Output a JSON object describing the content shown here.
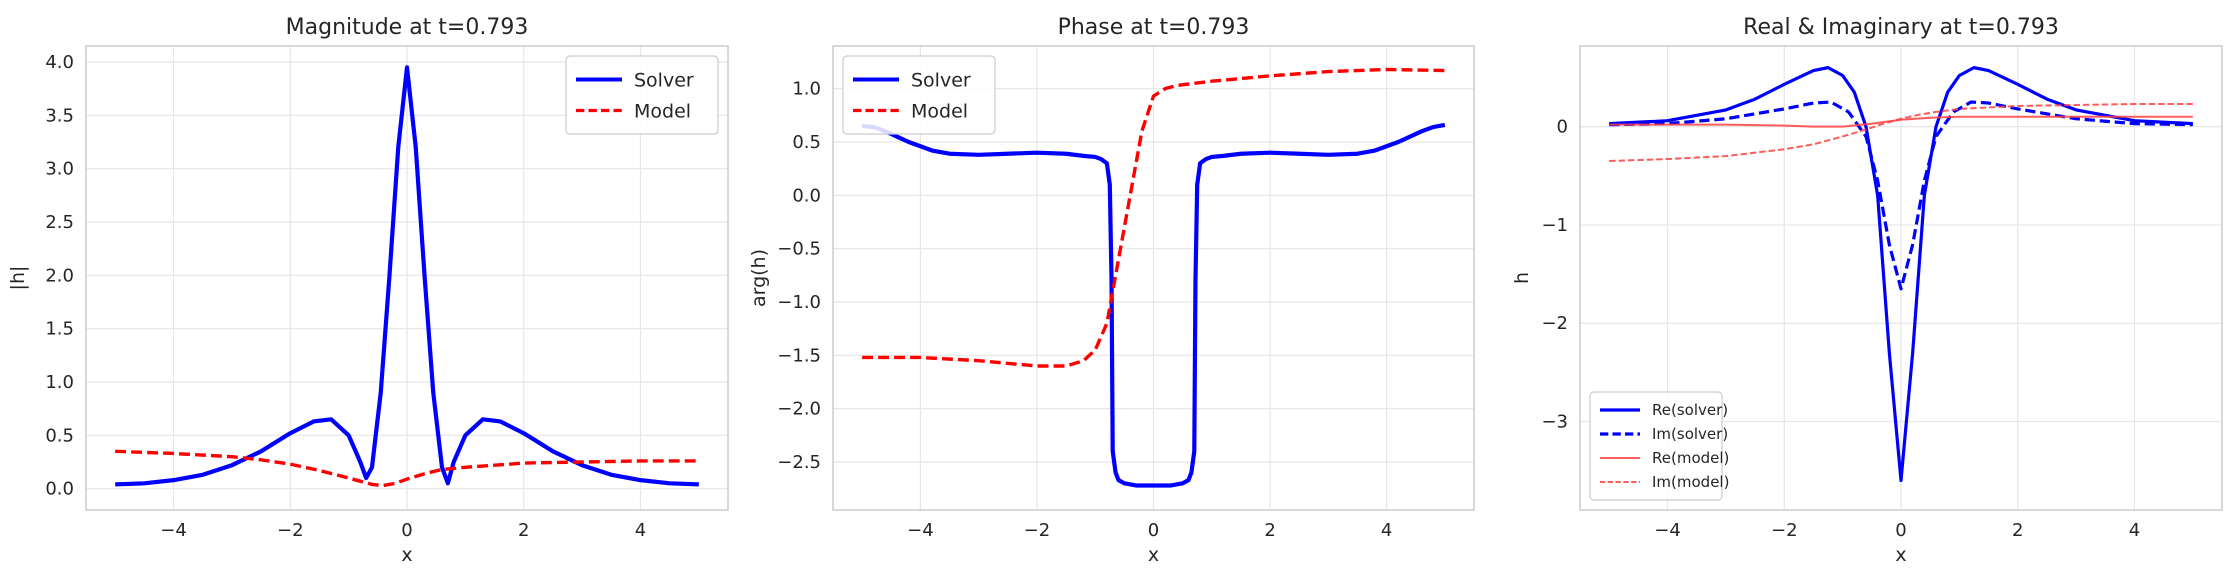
{
  "chart_data": [
    {
      "type": "line",
      "title": "Magnitude at t=0.793",
      "xlabel": "x",
      "ylabel": "|h|",
      "xlim": [
        -5.5,
        5.5
      ],
      "ylim": [
        -0.2,
        4.15
      ],
      "xticks": [
        -4,
        -2,
        0,
        2,
        4
      ],
      "xtick_labels": [
        "−4",
        "−2",
        "0",
        "2",
        "4"
      ],
      "yticks": [
        0.0,
        0.5,
        1.0,
        1.5,
        2.0,
        2.5,
        3.0,
        3.5,
        4.0
      ],
      "ytick_labels": [
        "0.0",
        "0.5",
        "1.0",
        "1.5",
        "2.0",
        "2.5",
        "3.0",
        "3.5",
        "4.0"
      ],
      "grid": true,
      "legend": "top-right",
      "series": [
        {
          "name": "Solver",
          "color": "#0000ff",
          "style": "solid",
          "x": [
            -5,
            -4.5,
            -4,
            -3.5,
            -3,
            -2.5,
            -2,
            -1.6,
            -1.3,
            -1.0,
            -0.8,
            -0.7,
            -0.6,
            -0.45,
            -0.3,
            -0.15,
            0,
            0.15,
            0.3,
            0.45,
            0.6,
            0.7,
            0.8,
            1.0,
            1.3,
            1.6,
            2,
            2.5,
            3,
            3.5,
            4,
            4.5,
            5
          ],
          "y": [
            0.04,
            0.05,
            0.08,
            0.13,
            0.22,
            0.35,
            0.52,
            0.63,
            0.65,
            0.5,
            0.25,
            0.1,
            0.2,
            0.9,
            2.0,
            3.2,
            3.95,
            3.2,
            2.0,
            0.9,
            0.2,
            0.05,
            0.25,
            0.5,
            0.65,
            0.63,
            0.52,
            0.35,
            0.22,
            0.13,
            0.08,
            0.05,
            0.04
          ]
        },
        {
          "name": "Model",
          "color": "#ff0000",
          "style": "dashed",
          "x": [
            -5,
            -4,
            -3,
            -2.5,
            -2,
            -1.5,
            -1,
            -0.6,
            -0.4,
            -0.2,
            0,
            0.3,
            0.6,
            1,
            1.5,
            2,
            3,
            4,
            5
          ],
          "y": [
            0.35,
            0.33,
            0.3,
            0.27,
            0.23,
            0.17,
            0.1,
            0.04,
            0.03,
            0.05,
            0.09,
            0.14,
            0.18,
            0.2,
            0.22,
            0.24,
            0.25,
            0.26,
            0.26
          ]
        }
      ]
    },
    {
      "type": "line",
      "title": "Phase at t=0.793",
      "xlabel": "x",
      "ylabel": "arg(h)",
      "xlim": [
        -5.5,
        5.5
      ],
      "ylim": [
        -2.95,
        1.4
      ],
      "xticks": [
        -4,
        -2,
        0,
        2,
        4
      ],
      "xtick_labels": [
        "−4",
        "−2",
        "0",
        "2",
        "4"
      ],
      "yticks": [
        -2.5,
        -2.0,
        -1.5,
        -1.0,
        -0.5,
        0.0,
        0.5,
        1.0
      ],
      "ytick_labels": [
        "−2.5",
        "−2.0",
        "−1.5",
        "−1.0",
        "−0.5",
        "0.0",
        "0.5",
        "1.0"
      ],
      "grid": true,
      "legend": "top-left",
      "series": [
        {
          "name": "Solver",
          "color": "#0000ff",
          "style": "solid",
          "x": [
            -5,
            -4.8,
            -4.6,
            -4.4,
            -4.2,
            -4,
            -3.8,
            -3.5,
            -3,
            -2.5,
            -2,
            -1.5,
            -1.2,
            -1.0,
            -0.9,
            -0.8,
            -0.75,
            -0.72,
            -0.7,
            -0.65,
            -0.6,
            -0.5,
            -0.3,
            0,
            0.3,
            0.5,
            0.6,
            0.65,
            0.7,
            0.72,
            0.75,
            0.8,
            0.9,
            1.0,
            1.2,
            1.5,
            2,
            2.5,
            3,
            3.5,
            3.8,
            4,
            4.2,
            4.4,
            4.6,
            4.8,
            5
          ],
          "y": [
            0.65,
            0.64,
            0.6,
            0.55,
            0.5,
            0.46,
            0.42,
            0.39,
            0.38,
            0.39,
            0.4,
            0.39,
            0.37,
            0.36,
            0.34,
            0.3,
            0.1,
            -0.8,
            -2.4,
            -2.6,
            -2.67,
            -2.7,
            -2.72,
            -2.72,
            -2.72,
            -2.7,
            -2.67,
            -2.6,
            -2.4,
            -0.8,
            0.1,
            0.3,
            0.34,
            0.36,
            0.37,
            0.39,
            0.4,
            0.39,
            0.38,
            0.39,
            0.42,
            0.46,
            0.5,
            0.55,
            0.6,
            0.64,
            0.66
          ]
        },
        {
          "name": "Model",
          "color": "#ff0000",
          "style": "dashed",
          "x": [
            -5,
            -4,
            -3,
            -2,
            -1.5,
            -1.2,
            -1.0,
            -0.8,
            -0.6,
            -0.4,
            -0.2,
            0,
            0.2,
            0.4,
            0.7,
            1,
            2,
            3,
            4,
            5
          ],
          "y": [
            -1.52,
            -1.52,
            -1.55,
            -1.6,
            -1.6,
            -1.55,
            -1.45,
            -1.2,
            -0.6,
            0.0,
            0.6,
            0.93,
            1.0,
            1.03,
            1.05,
            1.07,
            1.12,
            1.16,
            1.18,
            1.17
          ]
        }
      ]
    },
    {
      "type": "line",
      "title": "Real & Imaginary at t=0.793",
      "xlabel": "x",
      "ylabel": "h",
      "xlim": [
        -5.5,
        5.5
      ],
      "ylim": [
        -3.9,
        0.82
      ],
      "xticks": [
        -4,
        -2,
        0,
        2,
        4
      ],
      "xtick_labels": [
        "−4",
        "−2",
        "0",
        "2",
        "4"
      ],
      "yticks": [
        -3,
        -2,
        -1,
        0
      ],
      "ytick_labels": [
        "−3",
        "−2",
        "−1",
        "0"
      ],
      "grid": true,
      "legend": "bottom-left",
      "series": [
        {
          "name": "Re(solver)",
          "color": "#0000ff",
          "style": "solid",
          "x": [
            -5,
            -4,
            -3,
            -2.5,
            -2,
            -1.5,
            -1.25,
            -1.0,
            -0.8,
            -0.6,
            -0.4,
            -0.2,
            0,
            0.2,
            0.4,
            0.6,
            0.8,
            1.0,
            1.25,
            1.5,
            2,
            2.5,
            3,
            4,
            5
          ],
          "y": [
            0.03,
            0.06,
            0.17,
            0.28,
            0.43,
            0.57,
            0.6,
            0.52,
            0.35,
            0.0,
            -0.7,
            -2.3,
            -3.6,
            -2.3,
            -0.7,
            0.0,
            0.35,
            0.52,
            0.6,
            0.57,
            0.43,
            0.28,
            0.17,
            0.06,
            0.03
          ]
        },
        {
          "name": "Im(solver)",
          "color": "#0000ff",
          "style": "dashed",
          "x": [
            -5,
            -4,
            -3,
            -2,
            -1.5,
            -1.2,
            -0.9,
            -0.6,
            -0.4,
            -0.2,
            0,
            0.2,
            0.4,
            0.6,
            0.9,
            1.2,
            1.5,
            2,
            3,
            4,
            5
          ],
          "y": [
            0.02,
            0.03,
            0.08,
            0.18,
            0.24,
            0.25,
            0.15,
            -0.1,
            -0.55,
            -1.2,
            -1.65,
            -1.2,
            -0.55,
            -0.1,
            0.15,
            0.25,
            0.24,
            0.18,
            0.08,
            0.03,
            0.02
          ]
        },
        {
          "name": "Re(model)",
          "color": "#ff4040",
          "style": "solid",
          "x": [
            -5,
            -4,
            -3,
            -2,
            -1.5,
            -1,
            -0.5,
            0,
            0.5,
            1,
            1.5,
            2,
            3,
            4,
            5
          ],
          "y": [
            0.02,
            0.02,
            0.02,
            0.01,
            0.0,
            0.0,
            0.03,
            0.07,
            0.09,
            0.1,
            0.1,
            0.1,
            0.1,
            0.1,
            0.1
          ]
        },
        {
          "name": "Im(model)",
          "color": "#ff4040",
          "style": "dashed",
          "x": [
            -5,
            -4,
            -3,
            -2,
            -1.5,
            -1,
            -0.6,
            -0.3,
            0,
            0.3,
            0.6,
            1,
            2,
            3,
            4,
            5
          ],
          "y": [
            -0.35,
            -0.33,
            -0.3,
            -0.23,
            -0.18,
            -0.1,
            -0.03,
            0.03,
            0.08,
            0.12,
            0.15,
            0.18,
            0.21,
            0.22,
            0.23,
            0.23
          ]
        }
      ]
    }
  ]
}
